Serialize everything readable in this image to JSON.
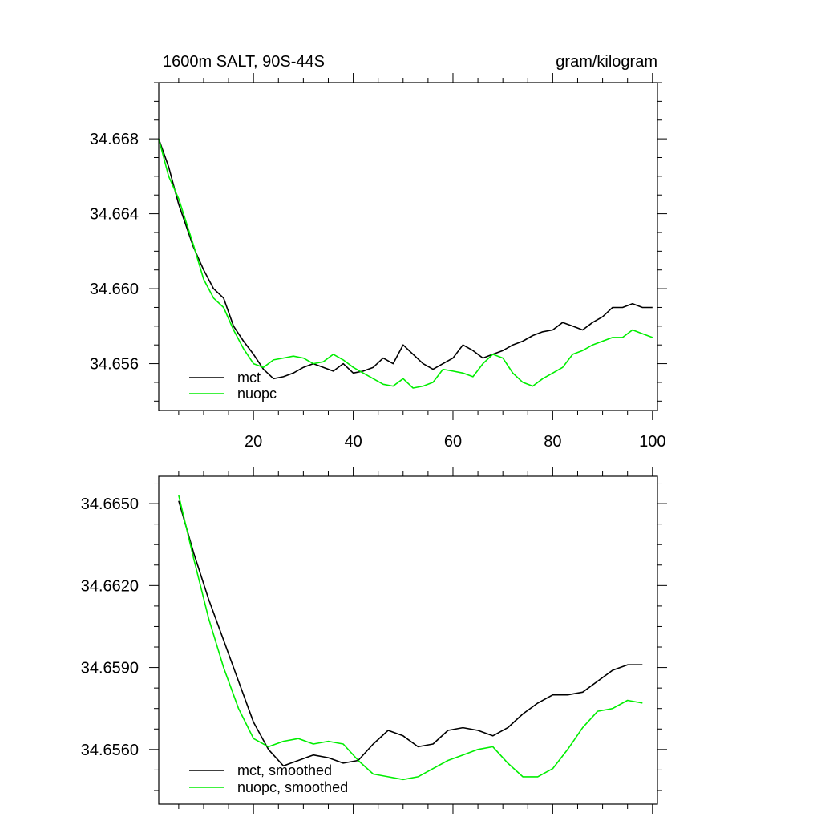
{
  "chart_data": [
    {
      "type": "line",
      "title_left": "1600m SALT, 90S-44S",
      "title_right": "gram/kilogram",
      "xlim": [
        1,
        101
      ],
      "ylim": [
        34.6535,
        34.671
      ],
      "x_ticks": [
        20,
        40,
        60,
        80,
        100
      ],
      "y_ticks": [
        34.656,
        34.66,
        34.664,
        34.668
      ],
      "y_tick_labels": [
        "34.656",
        "34.660",
        "34.664",
        "34.668"
      ],
      "legend_position": "bottom-left",
      "series": [
        {
          "name": "mct",
          "color": "#000000",
          "x": [
            1,
            3,
            5,
            8,
            10,
            12,
            14,
            16,
            18,
            20,
            22,
            24,
            26,
            28,
            30,
            32,
            34,
            36,
            38,
            40,
            42,
            44,
            46,
            48,
            50,
            52,
            54,
            56,
            58,
            60,
            62,
            64,
            66,
            68,
            70,
            72,
            74,
            76,
            78,
            80,
            82,
            84,
            86,
            88,
            90,
            92,
            94,
            96,
            98,
            100
          ],
          "values": [
            34.668,
            34.6665,
            34.6645,
            34.6622,
            34.661,
            34.66,
            34.6595,
            34.658,
            34.6572,
            34.6565,
            34.6557,
            34.6552,
            34.6553,
            34.6555,
            34.6558,
            34.656,
            34.6558,
            34.6556,
            34.656,
            34.6555,
            34.6556,
            34.6558,
            34.6563,
            34.656,
            34.657,
            34.6565,
            34.656,
            34.6557,
            34.656,
            34.6563,
            34.657,
            34.6567,
            34.6563,
            34.6565,
            34.6567,
            34.657,
            34.6572,
            34.6575,
            34.6577,
            34.6578,
            34.6582,
            34.658,
            34.6578,
            34.6582,
            34.6585,
            34.659,
            34.659,
            34.6592,
            34.659,
            34.659
          ]
        },
        {
          "name": "nuopc",
          "color": "#00ee00",
          "x": [
            1,
            3,
            5,
            8,
            10,
            12,
            14,
            16,
            18,
            20,
            22,
            24,
            26,
            28,
            30,
            32,
            34,
            36,
            38,
            40,
            42,
            44,
            46,
            48,
            50,
            52,
            54,
            56,
            58,
            60,
            62,
            64,
            66,
            68,
            70,
            72,
            74,
            76,
            78,
            80,
            82,
            84,
            86,
            88,
            90,
            92,
            94,
            96,
            98,
            100
          ],
          "values": [
            34.668,
            34.666,
            34.6648,
            34.6623,
            34.6605,
            34.6595,
            34.659,
            34.6578,
            34.6568,
            34.656,
            34.6558,
            34.6562,
            34.6563,
            34.6564,
            34.6563,
            34.656,
            34.6561,
            34.6565,
            34.6562,
            34.6558,
            34.6555,
            34.6552,
            34.6549,
            34.6548,
            34.6552,
            34.6547,
            34.6548,
            34.655,
            34.6557,
            34.6556,
            34.6555,
            34.6553,
            34.656,
            34.6565,
            34.6563,
            34.6555,
            34.655,
            34.6548,
            34.6552,
            34.6555,
            34.6558,
            34.6565,
            34.6567,
            34.657,
            34.6572,
            34.6574,
            34.6574,
            34.6578,
            34.6576,
            34.6574
          ]
        }
      ]
    },
    {
      "type": "line",
      "xlim": [
        1,
        101
      ],
      "ylim": [
        34.654,
        34.666
      ],
      "x_ticks": [
        20,
        40,
        60,
        80,
        100
      ],
      "y_ticks": [
        34.656,
        34.659,
        34.662,
        34.665
      ],
      "y_tick_labels": [
        "34.6560",
        "34.6590",
        "34.6620",
        "34.6650"
      ],
      "legend_position": "bottom-left",
      "series": [
        {
          "name": "mct, smoothed",
          "color": "#000000",
          "x": [
            5,
            8,
            11,
            14,
            17,
            20,
            23,
            26,
            29,
            32,
            35,
            38,
            41,
            44,
            47,
            50,
            53,
            56,
            59,
            62,
            65,
            68,
            71,
            74,
            77,
            80,
            83,
            86,
            89,
            92,
            95,
            98
          ],
          "values": [
            34.6651,
            34.6632,
            34.6615,
            34.66,
            34.6585,
            34.657,
            34.656,
            34.6554,
            34.6556,
            34.6558,
            34.6557,
            34.6555,
            34.6556,
            34.6562,
            34.6567,
            34.6565,
            34.6561,
            34.6562,
            34.6567,
            34.6568,
            34.6567,
            34.6565,
            34.6568,
            34.6573,
            34.6577,
            34.658,
            34.658,
            34.6581,
            34.6585,
            34.6589,
            34.6591,
            34.6591
          ]
        },
        {
          "name": "nuopc, smoothed",
          "color": "#00ee00",
          "x": [
            5,
            8,
            11,
            14,
            17,
            20,
            23,
            26,
            29,
            32,
            35,
            38,
            41,
            44,
            47,
            50,
            53,
            56,
            59,
            62,
            65,
            68,
            71,
            74,
            77,
            80,
            83,
            86,
            89,
            92,
            95,
            98
          ],
          "values": [
            34.6653,
            34.663,
            34.6608,
            34.659,
            34.6575,
            34.6564,
            34.6561,
            34.6563,
            34.6564,
            34.6562,
            34.6563,
            34.6562,
            34.6556,
            34.6551,
            34.655,
            34.6549,
            34.655,
            34.6553,
            34.6556,
            34.6558,
            34.656,
            34.6561,
            34.6555,
            34.655,
            34.655,
            34.6553,
            34.656,
            34.6568,
            34.6574,
            34.6575,
            34.6578,
            34.6577
          ]
        }
      ]
    }
  ]
}
